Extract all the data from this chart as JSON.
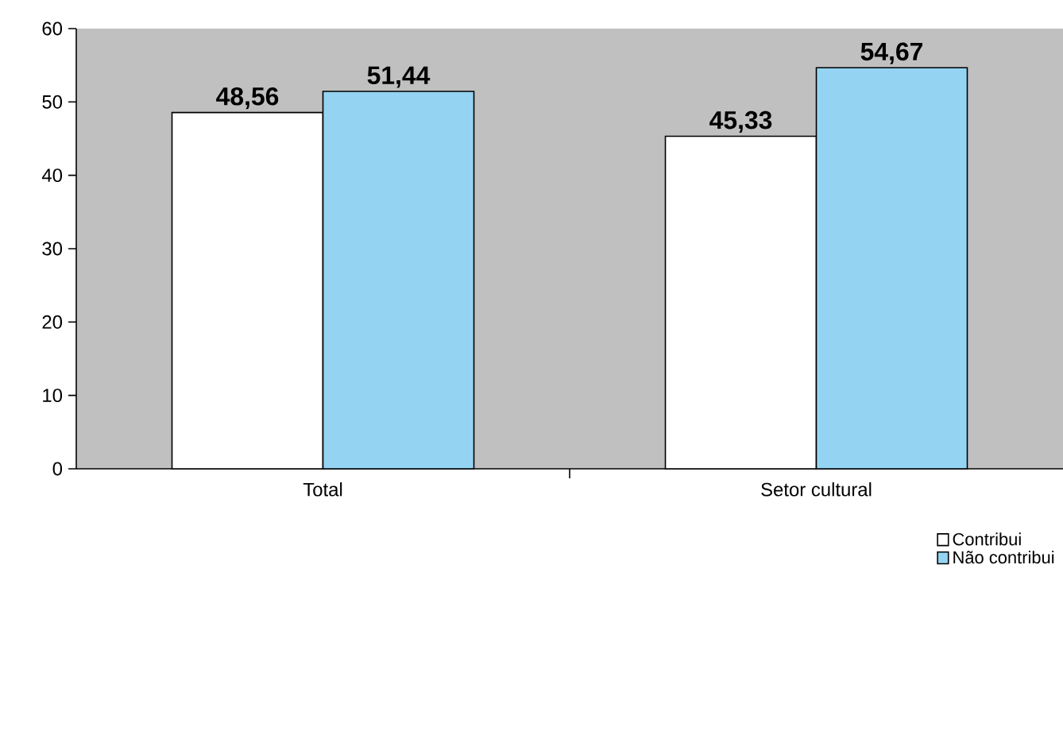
{
  "chart_data": {
    "type": "bar",
    "categories": [
      "Total",
      "Setor cultural"
    ],
    "series": [
      {
        "name": "Contribui",
        "color": "#ffffff",
        "values": [
          48.56,
          45.33
        ],
        "value_labels": [
          "48,56",
          "45,33"
        ]
      },
      {
        "name": "Não contribui",
        "color": "#94d4f2",
        "values": [
          51.44,
          54.67
        ],
        "value_labels": [
          "51,44",
          "54,67"
        ]
      }
    ],
    "ylim": [
      0,
      60
    ],
    "yticks": [
      0,
      10,
      20,
      30,
      40,
      50,
      60
    ],
    "grid": false,
    "legend": "bottom right"
  }
}
